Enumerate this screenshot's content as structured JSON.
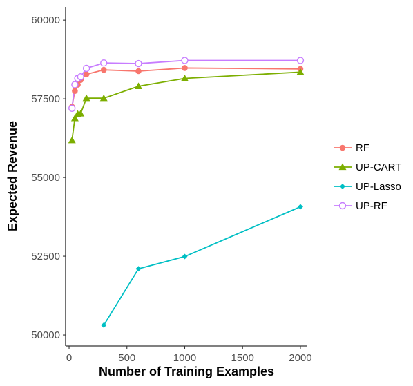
{
  "chart_data": {
    "type": "line",
    "title": "",
    "xlabel": "Number of Training Examples",
    "ylabel": "Expected Revenue",
    "xlim": [
      -30,
      2060
    ],
    "ylim": [
      49650,
      60420
    ],
    "xticks": [
      0,
      500,
      1000,
      1500,
      2000
    ],
    "xtick_labels": [
      "0",
      "500",
      "1000",
      "1500",
      "2000"
    ],
    "yticks": [
      50000,
      52500,
      55000,
      57500,
      60000
    ],
    "ytick_labels": [
      "50000",
      "52500",
      "55000",
      "57500",
      "60000"
    ],
    "grid": false,
    "legend_position": "right",
    "series": [
      {
        "name": "RF",
        "color": "#F8766D",
        "marker": "circle",
        "x": [
          25,
          50,
          75,
          100,
          150,
          300,
          600,
          1000,
          2000
        ],
        "y": [
          57250,
          57750,
          57950,
          58100,
          58280,
          58420,
          58380,
          58480,
          58450
        ]
      },
      {
        "name": "UP-CART",
        "color": "#7CAE00",
        "marker": "triangle",
        "x": [
          25,
          50,
          75,
          100,
          150,
          300,
          600,
          1000,
          2000
        ],
        "y": [
          56180,
          56880,
          57020,
          57030,
          57520,
          57520,
          57900,
          58150,
          58350
        ]
      },
      {
        "name": "UP-Lasso",
        "color": "#00BFC4",
        "marker": "diamond",
        "x": [
          300,
          600,
          1000,
          2000
        ],
        "y": [
          50310,
          52100,
          52490,
          54070
        ]
      },
      {
        "name": "UP-RF",
        "color": "#C77CFF",
        "marker": "open-circle",
        "x": [
          25,
          50,
          75,
          100,
          150,
          300,
          600,
          1000,
          2000
        ],
        "y": [
          57200,
          57950,
          58150,
          58200,
          58470,
          58640,
          58620,
          58720,
          58720
        ]
      }
    ]
  }
}
